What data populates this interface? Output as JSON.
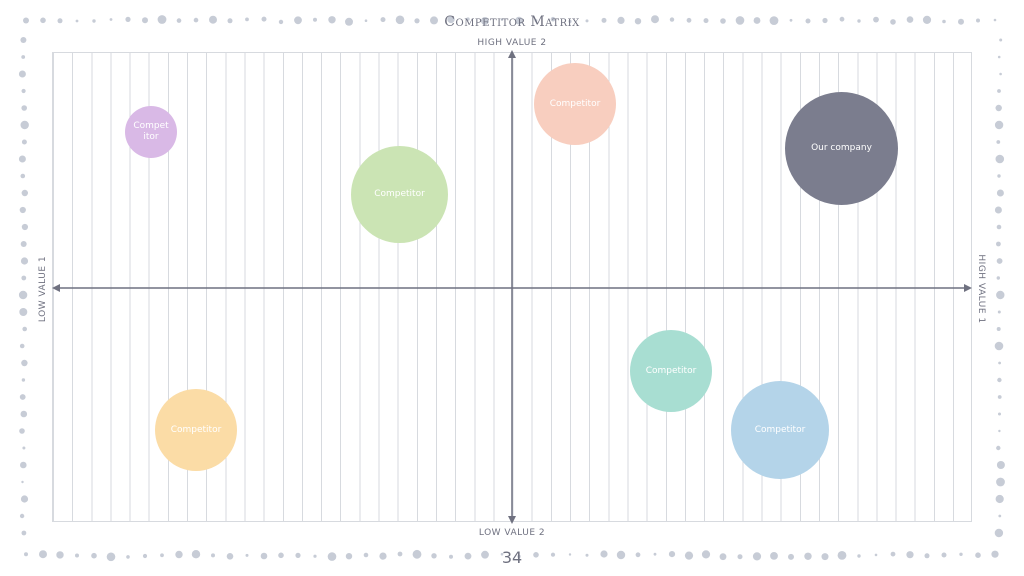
{
  "title": "Competitor Matrix",
  "axes": {
    "top": "HIGH VALUE 2",
    "bottom": "LOW VALUE 2",
    "left": "LOW VALUE 1",
    "right": "HIGH VALUE 1"
  },
  "colors": {
    "axis": "#6f7180",
    "grid": "#d7dadf",
    "border_dots": "#c7ccd6"
  },
  "bubbles": [
    {
      "label": "Compet itor",
      "color": "#d9b9e6"
    },
    {
      "label": "Competitor",
      "color": "#cbe4b4"
    },
    {
      "label": "Competitor",
      "color": "#f8cebf"
    },
    {
      "label": "Our company",
      "color": "#7b7d8e"
    },
    {
      "label": "Competitor",
      "color": "#a8ded2"
    },
    {
      "label": "Competitor",
      "color": "#fbdca6"
    },
    {
      "label": "Competitor",
      "color": "#b4d4e9"
    }
  ],
  "page_number": "34"
}
